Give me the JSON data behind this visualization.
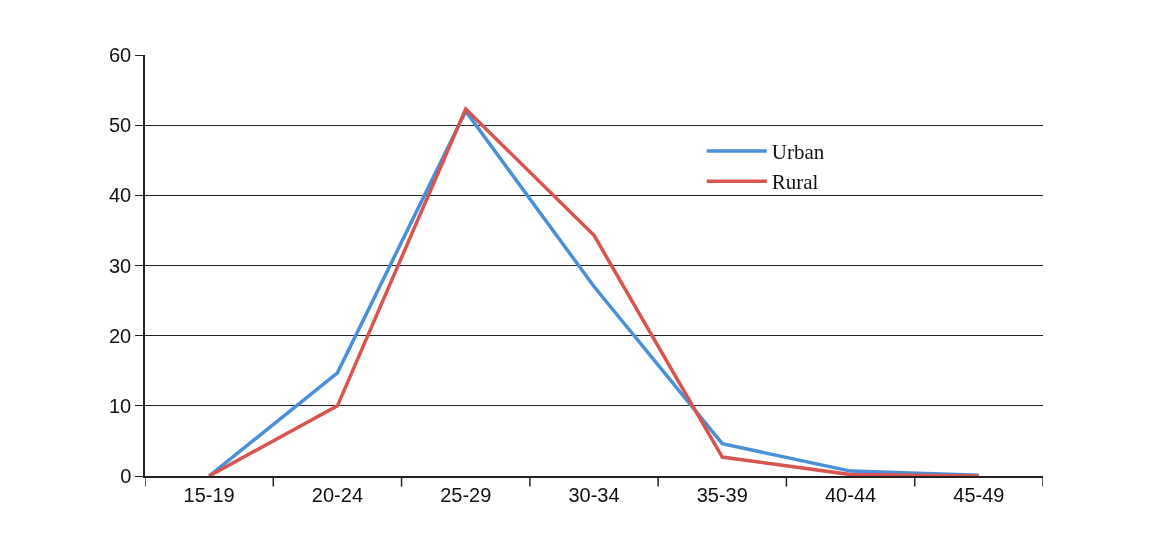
{
  "chart_data": {
    "type": "line",
    "categories": [
      "15-19",
      "20-24",
      "25-29",
      "30-34",
      "35-39",
      "40-44",
      "45-49"
    ],
    "series": [
      {
        "name": "Urban",
        "color": "#4a90d9",
        "values": [
          0,
          14.7,
          52,
          27,
          4.6,
          0.7,
          0.1
        ]
      },
      {
        "name": "Rural",
        "color": "#d9534f",
        "values": [
          0,
          10,
          52.3,
          34.3,
          2.7,
          0.2,
          0
        ]
      }
    ],
    "ylim": [
      0,
      60
    ],
    "yticks": [
      0,
      10,
      20,
      30,
      40,
      50,
      60
    ],
    "grid": "y",
    "legend": "top right",
    "marker": "none",
    "line_style": "solid"
  }
}
